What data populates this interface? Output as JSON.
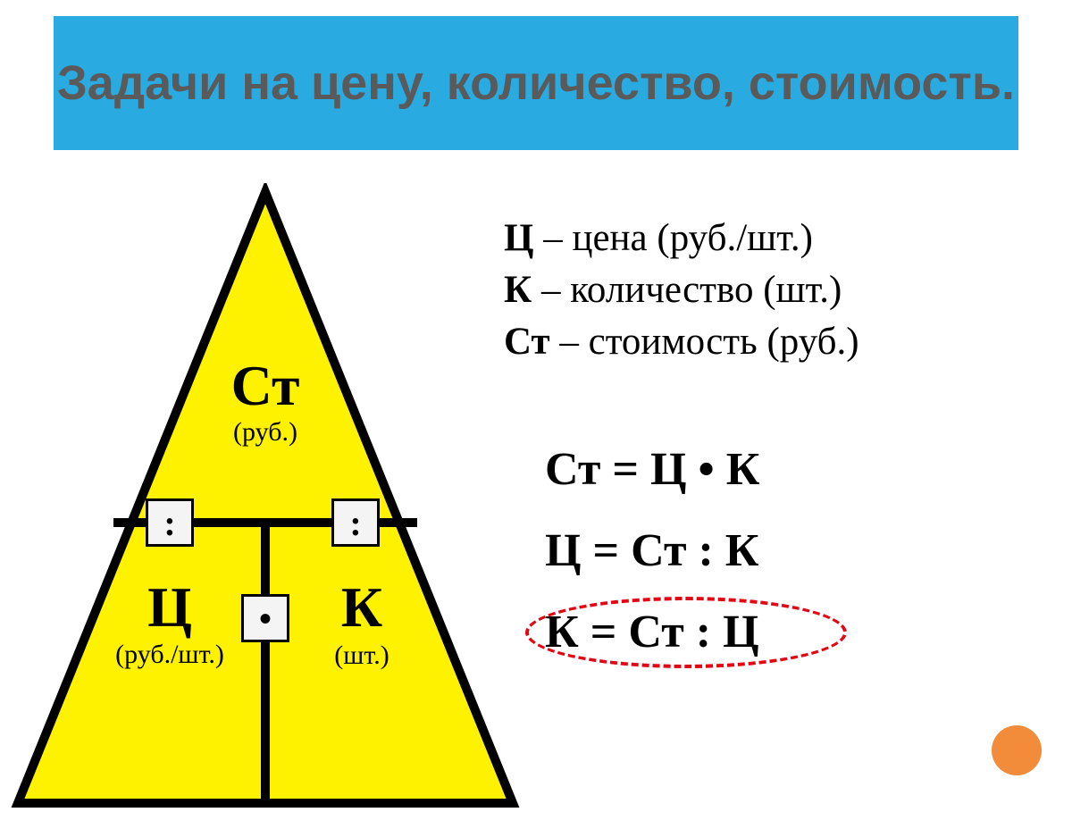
{
  "title": {
    "text": "Задачи на цену, количество, стоимость.",
    "bg": "#29abe2",
    "color": "#5a5a5a",
    "fontsize": 54
  },
  "triangle": {
    "fill": "#fff200",
    "stroke": "#000000",
    "stroke_width": 10,
    "top": {
      "symbol": "Ст",
      "unit": "(руб.)"
    },
    "bottom_left": {
      "symbol": "Ц",
      "unit": "(руб./шт.)"
    },
    "bottom_right": {
      "symbol": "К",
      "unit": "(шт.)"
    },
    "op_divide_left": ":",
    "op_divide_right": ":",
    "op_multiply": "•",
    "op_box_bg": "#f4f4f4",
    "symbol_fontsize": 64,
    "unit_fontsize": 30,
    "op_fontsize": 40
  },
  "legend": {
    "items": [
      {
        "sym": "Ц",
        "text": " – цена (руб./шт.)"
      },
      {
        "sym": "К",
        "text": " – количество (шт.)"
      },
      {
        "sym": "Ст",
        "text": " – стоимость (руб.)"
      }
    ],
    "sym_color": "#000000",
    "text_color": "#000000"
  },
  "formulas": {
    "f1": "Ст = Ц • К",
    "f2": "Ц = Ст : К",
    "f3": "К = Ст : Ц",
    "highlight_index": 2,
    "highlight_color": "#e30613",
    "highlight_dash": "8,8",
    "highlight_width": 4
  },
  "marker": {
    "color": "#f28c3b",
    "diameter": 56
  }
}
